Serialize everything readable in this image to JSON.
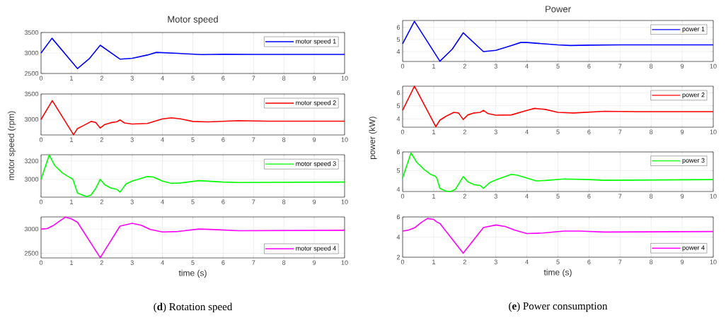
{
  "chart_data": [
    {
      "type": "line",
      "title": "Motor speed",
      "x": [
        0,
        0.36,
        1.2,
        1.6,
        1.95,
        2.6,
        3,
        3.5,
        3.8,
        4.5,
        5.3,
        6,
        7,
        10
      ],
      "series": [
        {
          "name": "motor speed 1",
          "color": "#0000ff",
          "values": [
            3000,
            3360,
            2620,
            2870,
            3190,
            2850,
            2870,
            2950,
            3015,
            2990,
            2960,
            2970,
            2965,
            2965
          ]
        }
      ],
      "xlim": [
        0,
        10
      ],
      "ylim": [
        2500,
        3500
      ],
      "xticks": [
        0,
        1,
        2,
        3,
        4,
        5,
        6,
        7,
        8,
        9,
        10
      ],
      "yticks": [
        2500,
        3000,
        3500
      ],
      "grid": true,
      "legend": "top right"
    },
    {
      "type": "line",
      "ylabel": "motor speed (rpm)",
      "x": [
        0,
        0.37,
        1.07,
        1.2,
        1.4,
        1.65,
        1.8,
        1.95,
        2.1,
        2.3,
        2.5,
        2.6,
        2.75,
        3,
        3.5,
        4,
        4.3,
        4.6,
        5,
        5.5,
        6.5,
        7.5,
        10
      ],
      "series": [
        {
          "name": "motor speed 2",
          "color": "#ff0000",
          "values": [
            3000,
            3370,
            2700,
            2820,
            2880,
            2960,
            2940,
            2830,
            2900,
            2935,
            2955,
            2990,
            2930,
            2910,
            2920,
            3010,
            3030,
            3010,
            2960,
            2950,
            2975,
            2965,
            2965
          ]
        }
      ],
      "xlim": [
        0,
        10
      ],
      "ylim": [
        2694,
        3500
      ],
      "xticks": [
        0,
        1,
        2,
        3,
        4,
        5,
        6,
        7,
        8,
        9,
        10
      ],
      "yticks": [
        3000,
        3500
      ],
      "grid": true,
      "legend": "top right"
    },
    {
      "type": "line",
      "x": [
        0,
        0.27,
        0.45,
        0.7,
        0.9,
        1.05,
        1.2,
        1.35,
        1.5,
        1.65,
        1.8,
        1.95,
        2.1,
        2.3,
        2.5,
        2.6,
        2.8,
        3,
        3.5,
        3.7,
        4,
        4.3,
        4.6,
        5.2,
        6,
        6.5,
        10
      ],
      "series": [
        {
          "name": "motor speed 3",
          "color": "#00ff00",
          "values": [
            3000,
            3265,
            3150,
            3070,
            3030,
            3000,
            2850,
            2830,
            2810,
            2830,
            2900,
            3000,
            2940,
            2905,
            2890,
            2860,
            2950,
            2980,
            3030,
            3025,
            2980,
            2955,
            2960,
            2985,
            2970,
            2965,
            2970
          ]
        }
      ],
      "xlim": [
        0,
        10
      ],
      "ylim": [
        2805,
        3268
      ],
      "xticks": [
        0,
        1,
        2,
        3,
        4,
        5,
        6,
        7,
        8,
        9,
        10
      ],
      "yticks": [
        3000,
        3200
      ],
      "grid": true,
      "legend": "top right"
    },
    {
      "type": "line",
      "xlabel": "time (s)",
      "annotations": [
        "(**d**) Rotation speed"
      ],
      "x": [
        0,
        0.2,
        0.4,
        0.6,
        0.8,
        1,
        1.2,
        1.95,
        2.6,
        3,
        3.3,
        3.6,
        4,
        4.5,
        5.2,
        5.7,
        6.5,
        10
      ],
      "series": [
        {
          "name": "motor speed 4",
          "color": "#ff00ff",
          "values": [
            3000,
            3010,
            3070,
            3160,
            3245,
            3210,
            3140,
            2410,
            3060,
            3120,
            3080,
            2990,
            2940,
            2950,
            3000,
            2990,
            2965,
            2975
          ]
        }
      ],
      "xlim": [
        0,
        10
      ],
      "ylim": [
        2405,
        3250
      ],
      "xticks": [
        0,
        1,
        2,
        3,
        4,
        5,
        6,
        7,
        8,
        9,
        10
      ],
      "yticks": [
        2500,
        3000
      ],
      "grid": true,
      "legend": "bottom right"
    },
    {
      "type": "line",
      "title": "Power",
      "x": [
        0,
        0.38,
        1.2,
        1.6,
        1.95,
        2.6,
        3,
        3.5,
        3.8,
        4,
        4.5,
        5,
        5.4,
        6,
        7,
        10
      ],
      "series": [
        {
          "name": "power 1",
          "color": "#0000ff",
          "values": [
            4.65,
            6.5,
            3.2,
            4.2,
            5.55,
            4.0,
            4.1,
            4.5,
            4.75,
            4.75,
            4.65,
            4.55,
            4.5,
            4.53,
            4.55,
            4.55
          ]
        }
      ],
      "xlim": [
        0,
        10
      ],
      "ylim": [
        3.18,
        6.57
      ],
      "xticks": [
        0,
        1,
        2,
        3,
        4,
        5,
        6,
        7,
        8,
        9,
        10
      ],
      "yticks": [
        4,
        5,
        6
      ],
      "grid": true,
      "legend": "top right"
    },
    {
      "type": "line",
      "ylabel": "power (kW)",
      "x": [
        0,
        0.38,
        1.07,
        1.2,
        1.4,
        1.65,
        1.8,
        1.95,
        2.1,
        2.3,
        2.5,
        2.6,
        2.75,
        3,
        3.5,
        4,
        4.25,
        4.6,
        5,
        5.5,
        6.5,
        7.5,
        10
      ],
      "series": [
        {
          "name": "power 2",
          "color": "#ff0000",
          "values": [
            4.65,
            6.5,
            3.4,
            3.9,
            4.2,
            4.5,
            4.45,
            3.95,
            4.3,
            4.45,
            4.5,
            4.65,
            4.4,
            4.28,
            4.3,
            4.65,
            4.8,
            4.72,
            4.5,
            4.45,
            4.58,
            4.55,
            4.55
          ]
        }
      ],
      "xlim": [
        0,
        10
      ],
      "ylim": [
        3.36,
        6.5
      ],
      "xticks": [
        0,
        1,
        2,
        3,
        4,
        5,
        6,
        7,
        8,
        9,
        10
      ],
      "yticks": [
        4,
        5,
        6
      ],
      "grid": true,
      "legend": "top right"
    },
    {
      "type": "line",
      "x": [
        0,
        0.27,
        0.45,
        0.7,
        0.9,
        1.05,
        1.1,
        1.2,
        1.4,
        1.55,
        1.7,
        1.95,
        2.1,
        2.3,
        2.5,
        2.6,
        2.8,
        3,
        3.5,
        3.7,
        4,
        4.3,
        4.6,
        5.2,
        6,
        6.5,
        10
      ],
      "series": [
        {
          "name": "power 3",
          "color": "#00ff00",
          "values": [
            4.6,
            5.95,
            5.45,
            5.05,
            4.8,
            4.7,
            4.6,
            4.05,
            3.9,
            3.88,
            4.0,
            4.68,
            4.4,
            4.25,
            4.2,
            4.05,
            4.35,
            4.5,
            4.8,
            4.75,
            4.6,
            4.45,
            4.47,
            4.55,
            4.52,
            4.48,
            4.52
          ]
        }
      ],
      "xlim": [
        0,
        10
      ],
      "ylim": [
        3.88,
        6
      ],
      "xticks": [
        0,
        1,
        2,
        3,
        4,
        5,
        6,
        7,
        8,
        9,
        10
      ],
      "yticks": [
        4,
        5,
        6
      ],
      "grid": true,
      "legend": "top right"
    },
    {
      "type": "line",
      "xlabel": "time (s)",
      "annotations": [
        "(**e**) Power consumption"
      ],
      "x": [
        0,
        0.2,
        0.4,
        0.6,
        0.8,
        1,
        1.1,
        1.2,
        1.95,
        2.6,
        3,
        3.3,
        3.6,
        4,
        4.5,
        5.2,
        5.7,
        6.5,
        10
      ],
      "series": [
        {
          "name": "power 4",
          "color": "#ff00ff",
          "values": [
            4.6,
            4.7,
            4.95,
            5.45,
            5.85,
            5.75,
            5.5,
            5.35,
            2.4,
            4.95,
            5.2,
            5.05,
            4.7,
            4.35,
            4.4,
            4.6,
            4.6,
            4.5,
            4.55
          ]
        }
      ],
      "xlim": [
        0,
        10
      ],
      "ylim": [
        2,
        6
      ],
      "xticks": [
        0,
        1,
        2,
        3,
        4,
        5,
        6,
        7,
        8,
        9,
        10
      ],
      "yticks": [
        2,
        4,
        6
      ],
      "grid": true,
      "legend": "bottom right"
    }
  ]
}
